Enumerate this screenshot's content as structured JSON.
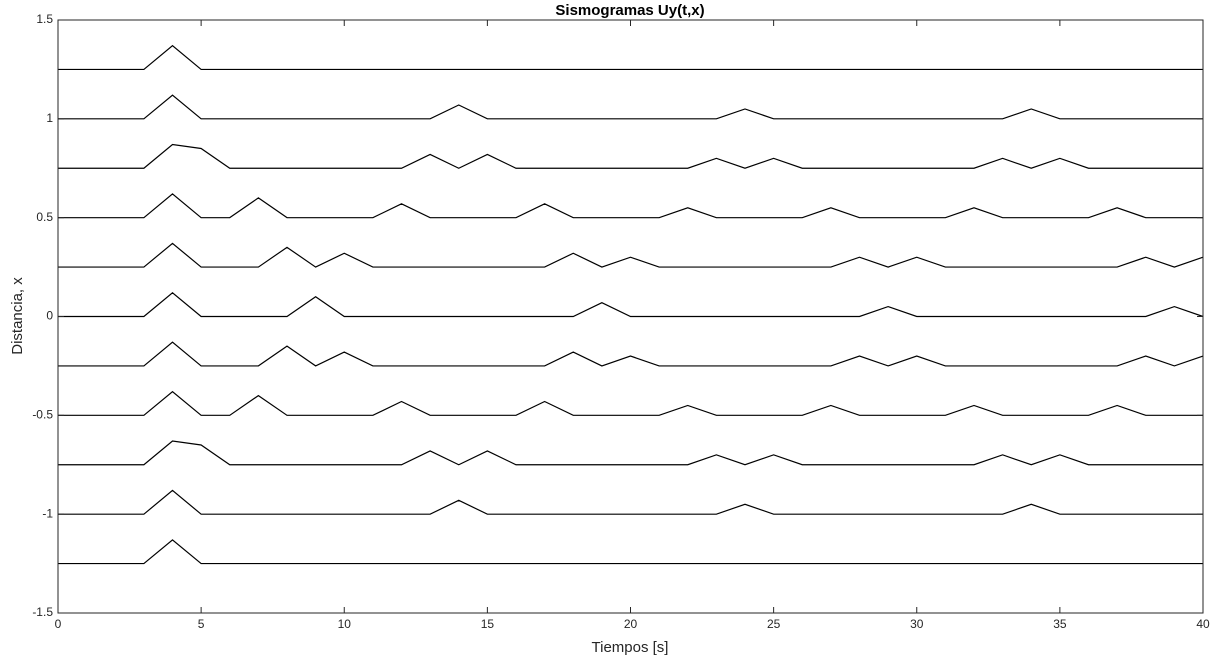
{
  "chart_data": {
    "type": "line",
    "title": "Sismogramas Uy(t,x)",
    "x_label": "Tiempos [s]",
    "y_label": "Distancia, x",
    "xlim": [
      0,
      40
    ],
    "ylim": [
      -1.5,
      1.5
    ],
    "xticks": [
      0,
      5,
      10,
      15,
      20,
      25,
      30,
      35,
      40
    ],
    "yticks": [
      -1.5,
      -1,
      -0.5,
      0,
      0.5,
      1,
      1.5
    ],
    "grid": false,
    "x": [
      0,
      1,
      2,
      3,
      4,
      5,
      6,
      7,
      8,
      9,
      10,
      11,
      12,
      13,
      14,
      15,
      16,
      17,
      18,
      19,
      20,
      21,
      22,
      23,
      24,
      25,
      26,
      27,
      28,
      29,
      30,
      31,
      32,
      33,
      34,
      35,
      36,
      37,
      38,
      39,
      40
    ],
    "series": [
      {
        "color": "#000000",
        "values": [
          1.25,
          1.25,
          1.25,
          1.25,
          1.37,
          1.25,
          1.25,
          1.25,
          1.25,
          1.25,
          1.25,
          1.25,
          1.25,
          1.25,
          1.25,
          1.25,
          1.25,
          1.25,
          1.25,
          1.25,
          1.25,
          1.25,
          1.25,
          1.25,
          1.25,
          1.25,
          1.25,
          1.25,
          1.25,
          1.25,
          1.25,
          1.25,
          1.25,
          1.25,
          1.25,
          1.25,
          1.25,
          1.25,
          1.25,
          1.25,
          1.25
        ]
      },
      {
        "color": "#000000",
        "values": [
          1,
          1,
          1,
          1,
          1.12,
          1,
          1,
          1,
          1,
          1,
          1,
          1,
          1,
          1,
          1.07,
          1,
          1,
          1,
          1,
          1,
          1,
          1,
          1,
          1,
          1.05,
          1,
          1,
          1,
          1,
          1,
          1,
          1,
          1,
          1,
          1.05,
          1,
          1,
          1,
          1,
          1,
          1
        ]
      },
      {
        "color": "#000000",
        "values": [
          0.75,
          0.75,
          0.75,
          0.75,
          0.87,
          0.85,
          0.75,
          0.75,
          0.75,
          0.75,
          0.75,
          0.75,
          0.75,
          0.82,
          0.75,
          0.82,
          0.75,
          0.75,
          0.75,
          0.75,
          0.75,
          0.75,
          0.75,
          0.8,
          0.75,
          0.8,
          0.75,
          0.75,
          0.75,
          0.75,
          0.75,
          0.75,
          0.75,
          0.8,
          0.75,
          0.8,
          0.75,
          0.75,
          0.75,
          0.75,
          0.75
        ]
      },
      {
        "color": "#000000",
        "values": [
          0.5,
          0.5,
          0.5,
          0.5,
          0.62,
          0.5,
          0.5,
          0.6,
          0.5,
          0.5,
          0.5,
          0.5,
          0.57,
          0.5,
          0.5,
          0.5,
          0.5,
          0.57,
          0.5,
          0.5,
          0.5,
          0.5,
          0.55,
          0.5,
          0.5,
          0.5,
          0.5,
          0.55,
          0.5,
          0.5,
          0.5,
          0.5,
          0.55,
          0.5,
          0.5,
          0.5,
          0.5,
          0.55,
          0.5,
          0.5,
          0.5
        ]
      },
      {
        "color": "#000000",
        "values": [
          0.25,
          0.25,
          0.25,
          0.25,
          0.37,
          0.25,
          0.25,
          0.25,
          0.35,
          0.25,
          0.32,
          0.25,
          0.25,
          0.25,
          0.25,
          0.25,
          0.25,
          0.25,
          0.32,
          0.25,
          0.3,
          0.25,
          0.25,
          0.25,
          0.25,
          0.25,
          0.25,
          0.25,
          0.3,
          0.25,
          0.3,
          0.25,
          0.25,
          0.25,
          0.25,
          0.25,
          0.25,
          0.25,
          0.3,
          0.25,
          0.3
        ]
      },
      {
        "color": "#000000",
        "values": [
          0,
          0,
          0,
          0,
          0.12,
          0,
          0,
          0,
          0,
          0.1,
          0,
          0,
          0,
          0,
          0,
          0,
          0,
          0,
          0,
          0.07,
          0,
          0,
          0,
          0,
          0,
          0,
          0,
          0,
          0,
          0.05,
          0,
          0,
          0,
          0,
          0,
          0,
          0,
          0,
          0,
          0.05,
          0
        ]
      },
      {
        "color": "#000000",
        "values": [
          -0.25,
          -0.25,
          -0.25,
          -0.25,
          -0.13,
          -0.25,
          -0.25,
          -0.25,
          -0.15,
          -0.25,
          -0.18,
          -0.25,
          -0.25,
          -0.25,
          -0.25,
          -0.25,
          -0.25,
          -0.25,
          -0.18,
          -0.25,
          -0.2,
          -0.25,
          -0.25,
          -0.25,
          -0.25,
          -0.25,
          -0.25,
          -0.25,
          -0.2,
          -0.25,
          -0.2,
          -0.25,
          -0.25,
          -0.25,
          -0.25,
          -0.25,
          -0.25,
          -0.25,
          -0.2,
          -0.25,
          -0.2
        ]
      },
      {
        "color": "#000000",
        "values": [
          -0.5,
          -0.5,
          -0.5,
          -0.5,
          -0.38,
          -0.5,
          -0.5,
          -0.4,
          -0.5,
          -0.5,
          -0.5,
          -0.5,
          -0.43,
          -0.5,
          -0.5,
          -0.5,
          -0.5,
          -0.43,
          -0.5,
          -0.5,
          -0.5,
          -0.5,
          -0.45,
          -0.5,
          -0.5,
          -0.5,
          -0.5,
          -0.45,
          -0.5,
          -0.5,
          -0.5,
          -0.5,
          -0.45,
          -0.5,
          -0.5,
          -0.5,
          -0.5,
          -0.45,
          -0.5,
          -0.5,
          -0.5
        ]
      },
      {
        "color": "#000000",
        "values": [
          -0.75,
          -0.75,
          -0.75,
          -0.75,
          -0.63,
          -0.65,
          -0.75,
          -0.75,
          -0.75,
          -0.75,
          -0.75,
          -0.75,
          -0.75,
          -0.68,
          -0.75,
          -0.68,
          -0.75,
          -0.75,
          -0.75,
          -0.75,
          -0.75,
          -0.75,
          -0.75,
          -0.7,
          -0.75,
          -0.7,
          -0.75,
          -0.75,
          -0.75,
          -0.75,
          -0.75,
          -0.75,
          -0.75,
          -0.7,
          -0.75,
          -0.7,
          -0.75,
          -0.75,
          -0.75,
          -0.75,
          -0.75
        ]
      },
      {
        "color": "#000000",
        "values": [
          -1,
          -1,
          -1,
          -1,
          -0.88,
          -1,
          -1,
          -1,
          -1,
          -1,
          -1,
          -1,
          -1,
          -1,
          -0.93,
          -1,
          -1,
          -1,
          -1,
          -1,
          -1,
          -1,
          -1,
          -1,
          -0.95,
          -1,
          -1,
          -1,
          -1,
          -1,
          -1,
          -1,
          -1,
          -1,
          -0.95,
          -1,
          -1,
          -1,
          -1,
          -1,
          -1
        ]
      },
      {
        "color": "#000000",
        "values": [
          -1.25,
          -1.25,
          -1.25,
          -1.25,
          -1.13,
          -1.25,
          -1.25,
          -1.25,
          -1.25,
          -1.25,
          -1.25,
          -1.25,
          -1.25,
          -1.25,
          -1.25,
          -1.25,
          -1.25,
          -1.25,
          -1.25,
          -1.25,
          -1.25,
          -1.25,
          -1.25,
          -1.25,
          -1.25,
          -1.25,
          -1.25,
          -1.25,
          -1.25,
          -1.25,
          -1.25,
          -1.25,
          -1.25,
          -1.25,
          -1.25,
          -1.25,
          -1.25,
          -1.25,
          -1.25,
          -1.25,
          -1.25
        ]
      }
    ]
  }
}
